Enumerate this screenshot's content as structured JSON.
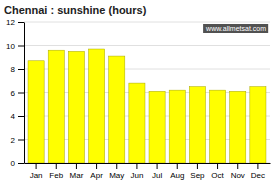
{
  "chart_data": {
    "type": "bar",
    "title": "Chennai : sunshine (hours)",
    "categories": [
      "Jan",
      "Feb",
      "Mar",
      "Apr",
      "May",
      "Jun",
      "Jul",
      "Aug",
      "Sep",
      "Oct",
      "Nov",
      "Dec"
    ],
    "values": [
      8.7,
      9.6,
      9.5,
      9.7,
      9.1,
      6.8,
      6.1,
      6.2,
      6.5,
      6.2,
      6.1,
      6.5
    ],
    "color": "#FFFF00",
    "ylim": [
      0,
      12
    ],
    "yticks": [
      0,
      2,
      4,
      6,
      8,
      10,
      12
    ],
    "grid": true,
    "annotations": [
      "www.allmetsat.com"
    ]
  }
}
